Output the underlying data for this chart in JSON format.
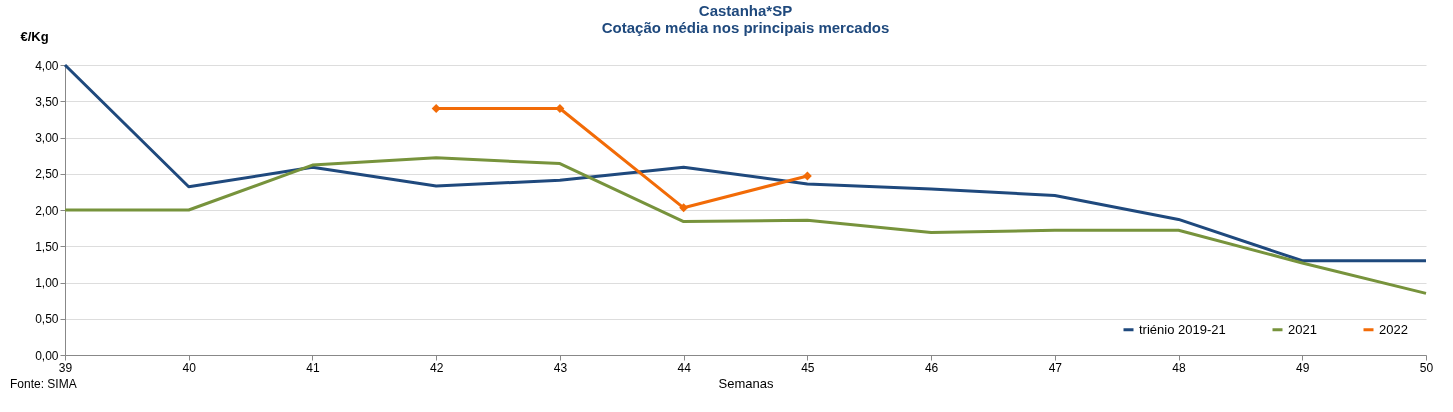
{
  "chart_data": {
    "type": "line",
    "title": "Castanha*SP",
    "subtitle": "Cotação média nos principais mercados",
    "xlabel": "Semanas",
    "ylabel": "€/Kg",
    "categories": [
      "39",
      "40",
      "41",
      "42",
      "43",
      "44",
      "45",
      "46",
      "47",
      "48",
      "49",
      "50"
    ],
    "series": [
      {
        "name": "triénio 2019-21",
        "color": "#1f497d",
        "marker": "none",
        "values": [
          4.0,
          2.32,
          2.59,
          2.33,
          2.41,
          2.59,
          2.36,
          2.29,
          2.2,
          1.87,
          1.3,
          1.3
        ]
      },
      {
        "name": "2021",
        "color": "#77933c",
        "marker": "none",
        "values": [
          2.0,
          2.0,
          2.62,
          2.72,
          2.64,
          1.84,
          1.86,
          1.69,
          1.72,
          1.72,
          1.27,
          0.85
        ]
      },
      {
        "name": "2022",
        "color": "#f26b07",
        "marker": "diamond",
        "values": [
          null,
          null,
          null,
          3.4,
          3.4,
          2.03,
          2.47,
          null,
          null,
          null,
          null,
          null
        ]
      }
    ],
    "ylim": [
      0,
      4
    ],
    "yticks": [
      {
        "value": 0,
        "label": "0,00"
      },
      {
        "value": 0.5,
        "label": "0,50"
      },
      {
        "value": 1,
        "label": "1,00"
      },
      {
        "value": 1.5,
        "label": "1,50"
      },
      {
        "value": 2,
        "label": "2,00"
      },
      {
        "value": 2.5,
        "label": "2,50"
      },
      {
        "value": 3,
        "label": "3,00"
      },
      {
        "value": 3.5,
        "label": "3,50"
      },
      {
        "value": 4,
        "label": "4,00"
      }
    ],
    "grid": "y",
    "legend": "bottom right",
    "annotations": [
      "Fonte: SIMA"
    ]
  }
}
